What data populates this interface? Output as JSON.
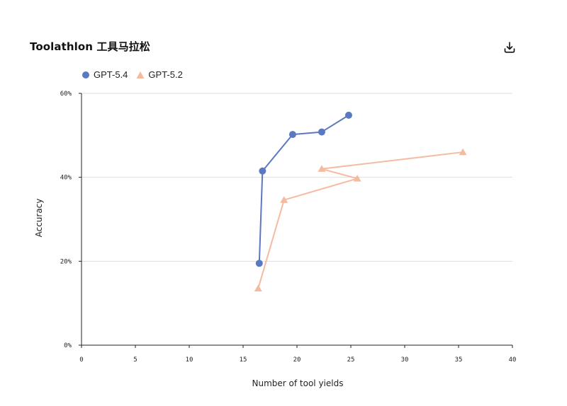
{
  "chart_data": {
    "type": "line",
    "title": "Toolathlon 工具马拉松",
    "xlabel": "Number of tool yields",
    "ylabel": "Accuracy",
    "xlim": [
      0,
      40
    ],
    "ylim": [
      0,
      60
    ],
    "x_ticks": [
      0,
      5,
      10,
      15,
      20,
      25,
      30,
      35,
      40
    ],
    "x_tick_labels": [
      "0",
      "5",
      "10",
      "15",
      "20",
      "25",
      "30",
      "35",
      "40"
    ],
    "y_ticks": [
      0,
      20,
      40,
      60
    ],
    "y_tick_labels": [
      "0%",
      "20%",
      "40%",
      "60%"
    ],
    "grid": "horizontal",
    "legend_position": "top-left",
    "series": [
      {
        "name": "GPT-5.4",
        "marker": "circle",
        "color": "#5B79C0",
        "points": [
          {
            "x": 16.5,
            "y": 19.5
          },
          {
            "x": 16.8,
            "y": 41.5
          },
          {
            "x": 19.6,
            "y": 50.2
          },
          {
            "x": 22.3,
            "y": 50.8
          },
          {
            "x": 24.8,
            "y": 54.8
          }
        ]
      },
      {
        "name": "GPT-5.2",
        "marker": "triangle",
        "color": "#F5BBA1",
        "points": [
          {
            "x": 16.4,
            "y": 13.5
          },
          {
            "x": 18.8,
            "y": 34.6
          },
          {
            "x": 25.6,
            "y": 39.7
          },
          {
            "x": 22.3,
            "y": 42.0
          },
          {
            "x": 35.4,
            "y": 46.0
          }
        ]
      }
    ]
  },
  "toolbar": {
    "download_icon": "download-icon"
  }
}
